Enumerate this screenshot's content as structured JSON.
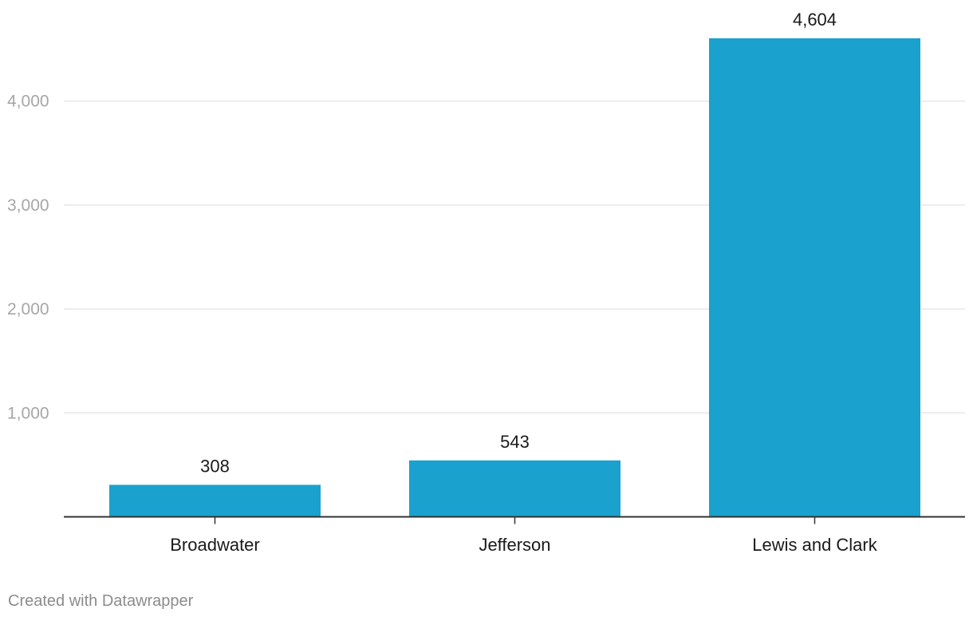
{
  "chart_data": {
    "type": "bar",
    "categories": [
      "Broadwater",
      "Jefferson",
      "Lewis and Clark"
    ],
    "values": [
      308,
      543,
      4604
    ],
    "value_labels": [
      "308",
      "543",
      "4,604"
    ],
    "y_ticks": [
      1000,
      2000,
      3000,
      4000
    ],
    "y_tick_labels": [
      "1,000",
      "2,000",
      "3,000",
      "4,000"
    ],
    "ylim": [
      0,
      4604
    ],
    "grid": true,
    "bar_color": "#1aa1cd"
  },
  "footer": {
    "credit": "Created with Datawrapper"
  }
}
